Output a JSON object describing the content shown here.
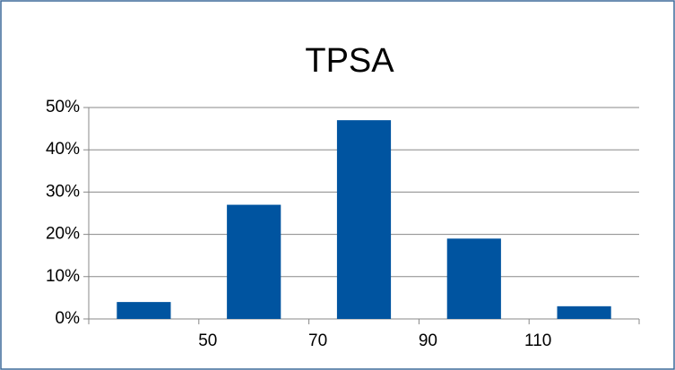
{
  "chart_data": {
    "type": "histogram",
    "title": "TPSA",
    "bins": [
      30,
      50,
      70,
      90,
      110,
      130
    ],
    "values": [
      4,
      27,
      47,
      19,
      3
    ],
    "color": "#0054a0",
    "xlim": [
      30,
      130
    ],
    "xticks": [
      50,
      70,
      90,
      110
    ],
    "ylim": [
      0,
      50
    ],
    "yticks": [
      {
        "value": 0,
        "label": "0%"
      },
      {
        "value": 10,
        "label": "10%"
      },
      {
        "value": 20,
        "label": "20%"
      },
      {
        "value": 30,
        "label": "30%"
      },
      {
        "value": 40,
        "label": "40%"
      },
      {
        "value": 50,
        "label": "50%"
      }
    ],
    "grid": true
  }
}
